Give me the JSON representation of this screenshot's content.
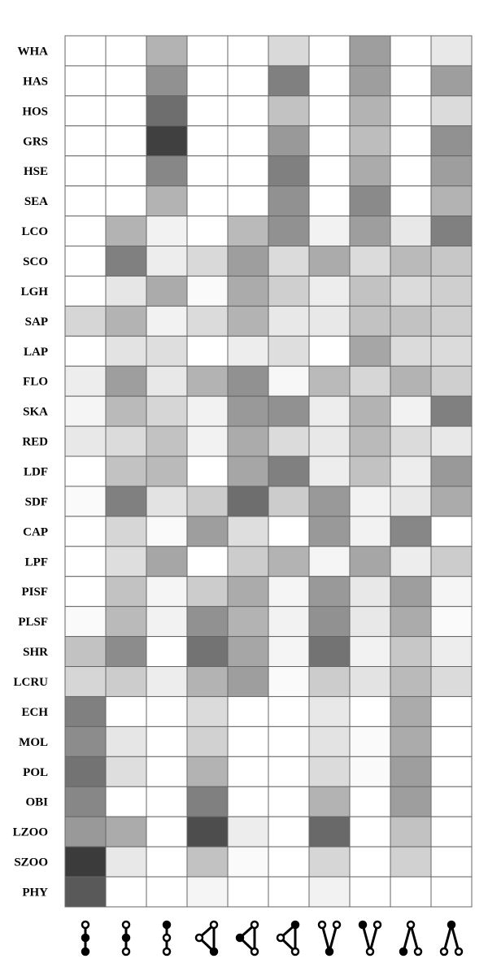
{
  "chart_data": {
    "type": "heatmap",
    "title": "",
    "xlabel": "",
    "ylabel": "",
    "rows": [
      "WHA",
      "HAS",
      "HOS",
      "GRS",
      "HSE",
      "SEA",
      "LCO",
      "SCO",
      "LGH",
      "SAP",
      "LAP",
      "FLO",
      "SKA",
      "RED",
      "LDF",
      "SDF",
      "CAP",
      "LPF",
      "PISF",
      "PLSF",
      "SHR",
      "LCRU",
      "ECH",
      "MOL",
      "POL",
      "OBI",
      "LZOO",
      "SZOO",
      "PHY"
    ],
    "columns": [
      {
        "motif": "chain-node-open-top"
      },
      {
        "motif": "chain-node-filled-middle"
      },
      {
        "motif": "chain-node-filled-top"
      },
      {
        "motif": "triangle-filled-bottom"
      },
      {
        "motif": "triangle-filled-left"
      },
      {
        "motif": "triangle-filled-top"
      },
      {
        "motif": "v-filled-bottom"
      },
      {
        "motif": "v-filled-top-left"
      },
      {
        "motif": "lambda-filled-bottom-left"
      },
      {
        "motif": "lambda-filled-top"
      }
    ],
    "value_range": [
      0,
      1
    ],
    "grid": true,
    "cell_edge_color": "#666666",
    "values": [
      [
        0.0,
        0.0,
        0.3,
        0.0,
        0.0,
        0.15,
        0.0,
        0.38,
        0.0,
        0.09
      ],
      [
        0.0,
        0.0,
        0.43,
        0.0,
        0.0,
        0.5,
        0.0,
        0.38,
        0.0,
        0.38
      ],
      [
        0.0,
        0.0,
        0.57,
        0.0,
        0.0,
        0.24,
        0.0,
        0.3,
        0.0,
        0.14
      ],
      [
        0.0,
        0.0,
        0.75,
        0.0,
        0.0,
        0.4,
        0.0,
        0.26,
        0.0,
        0.43
      ],
      [
        0.0,
        0.0,
        0.47,
        0.0,
        0.0,
        0.5,
        0.0,
        0.33,
        0.0,
        0.38
      ],
      [
        0.0,
        0.0,
        0.3,
        0.0,
        0.0,
        0.43,
        0.0,
        0.46,
        0.0,
        0.3
      ],
      [
        0.0,
        0.3,
        0.05,
        0.0,
        0.27,
        0.43,
        0.05,
        0.38,
        0.09,
        0.5
      ],
      [
        0.0,
        0.5,
        0.07,
        0.15,
        0.38,
        0.14,
        0.33,
        0.14,
        0.27,
        0.22
      ],
      [
        0.0,
        0.1,
        0.33,
        0.02,
        0.33,
        0.19,
        0.07,
        0.24,
        0.14,
        0.19
      ],
      [
        0.16,
        0.3,
        0.05,
        0.14,
        0.3,
        0.09,
        0.09,
        0.24,
        0.24,
        0.19
      ],
      [
        0.0,
        0.11,
        0.13,
        0.0,
        0.07,
        0.13,
        0.0,
        0.35,
        0.14,
        0.14
      ],
      [
        0.07,
        0.38,
        0.09,
        0.3,
        0.43,
        0.03,
        0.27,
        0.16,
        0.3,
        0.19
      ],
      [
        0.04,
        0.27,
        0.16,
        0.05,
        0.4,
        0.43,
        0.07,
        0.3,
        0.05,
        0.5
      ],
      [
        0.09,
        0.14,
        0.24,
        0.05,
        0.33,
        0.14,
        0.09,
        0.27,
        0.14,
        0.09
      ],
      [
        0.0,
        0.24,
        0.27,
        0.0,
        0.35,
        0.5,
        0.07,
        0.24,
        0.07,
        0.4
      ],
      [
        0.02,
        0.5,
        0.11,
        0.2,
        0.57,
        0.2,
        0.4,
        0.05,
        0.09,
        0.33
      ],
      [
        0.0,
        0.16,
        0.02,
        0.38,
        0.13,
        0.0,
        0.4,
        0.05,
        0.47,
        0.0
      ],
      [
        0.0,
        0.13,
        0.35,
        0.0,
        0.2,
        0.3,
        0.04,
        0.35,
        0.07,
        0.2
      ],
      [
        0.0,
        0.24,
        0.04,
        0.2,
        0.33,
        0.04,
        0.4,
        0.09,
        0.38,
        0.04
      ],
      [
        0.02,
        0.27,
        0.05,
        0.43,
        0.3,
        0.05,
        0.43,
        0.09,
        0.33,
        0.02
      ],
      [
        0.24,
        0.45,
        0.0,
        0.55,
        0.35,
        0.04,
        0.55,
        0.05,
        0.22,
        0.07
      ],
      [
        0.16,
        0.2,
        0.07,
        0.3,
        0.38,
        0.02,
        0.2,
        0.11,
        0.27,
        0.14
      ],
      [
        0.5,
        0.0,
        0.0,
        0.14,
        0.0,
        0.0,
        0.09,
        0.0,
        0.33,
        0.0
      ],
      [
        0.45,
        0.1,
        0.0,
        0.18,
        0.0,
        0.0,
        0.11,
        0.02,
        0.33,
        0.0
      ],
      [
        0.55,
        0.13,
        0.0,
        0.3,
        0.0,
        0.0,
        0.14,
        0.02,
        0.38,
        0.0
      ],
      [
        0.47,
        0.0,
        0.0,
        0.5,
        0.0,
        0.0,
        0.3,
        0.0,
        0.38,
        0.0
      ],
      [
        0.4,
        0.33,
        0.0,
        0.7,
        0.07,
        0.0,
        0.59,
        0.0,
        0.24,
        0.0
      ],
      [
        0.77,
        0.09,
        0.0,
        0.24,
        0.02,
        0.0,
        0.16,
        0.0,
        0.18,
        0.0
      ],
      [
        0.65,
        0.0,
        0.0,
        0.04,
        0.0,
        0.0,
        0.05,
        0.0,
        0.0,
        0.0
      ]
    ]
  }
}
